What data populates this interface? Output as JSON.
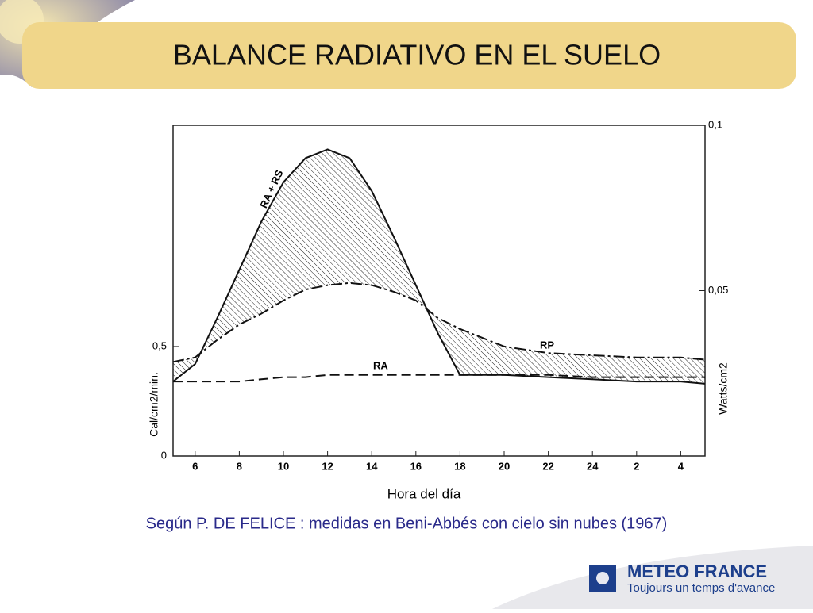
{
  "header": {
    "title": "BALANCE RADIATIVO EN EL SUELO"
  },
  "caption": "Según P. DE FELICE : medidas en Beni-Abbés con cielo sin nubes (1967)",
  "logo": {
    "name": "METEO FRANCE",
    "tagline": "Toujours un temps d'avance"
  },
  "chart_data": {
    "type": "line",
    "xlabel": "Hora del día",
    "ylabel": "Cal/cm2/min.",
    "y2label": "Watts/cm2",
    "x": [
      5,
      6,
      7,
      8,
      9,
      10,
      11,
      12,
      13,
      14,
      15,
      16,
      17,
      18,
      20,
      22,
      24,
      26,
      28,
      29.1
    ],
    "series": [
      {
        "name": "RA + RS",
        "color": "#111111",
        "style": "solid",
        "values": [
          0.34,
          0.42,
          0.63,
          0.85,
          1.07,
          1.25,
          1.36,
          1.4,
          1.36,
          1.21,
          1.0,
          0.78,
          0.56,
          0.37,
          0.37,
          0.36,
          0.35,
          0.34,
          0.34,
          0.33
        ]
      },
      {
        "name": "RP",
        "color": "#111111",
        "style": "dashdot",
        "values": [
          0.43,
          0.45,
          0.53,
          0.6,
          0.65,
          0.71,
          0.76,
          0.78,
          0.79,
          0.78,
          0.75,
          0.71,
          0.63,
          0.58,
          0.5,
          0.47,
          0.46,
          0.45,
          0.45,
          0.44
        ]
      },
      {
        "name": "RA",
        "color": "#111111",
        "style": "dashed",
        "values": [
          0.34,
          0.34,
          0.34,
          0.34,
          0.35,
          0.36,
          0.36,
          0.37,
          0.37,
          0.37,
          0.37,
          0.37,
          0.37,
          0.37,
          0.37,
          0.37,
          0.36,
          0.36,
          0.36,
          0.36
        ]
      }
    ],
    "xlim": [
      5,
      29.1
    ],
    "xticks": [
      6,
      8,
      10,
      12,
      14,
      16,
      18,
      20,
      22,
      24,
      {
        "value": 26,
        "label": "2"
      },
      {
        "value": 28,
        "label": "4"
      }
    ],
    "ylim": [
      0,
      1.51
    ],
    "yticks": [
      0,
      {
        "value": 0.5,
        "label": "0,5"
      }
    ],
    "y2lim": [
      0,
      0.1
    ],
    "y2ticks": [
      {
        "value": 0.05,
        "label": "0,05"
      },
      {
        "value": 0.1,
        "label": "0,1"
      }
    ],
    "hatch": true
  }
}
